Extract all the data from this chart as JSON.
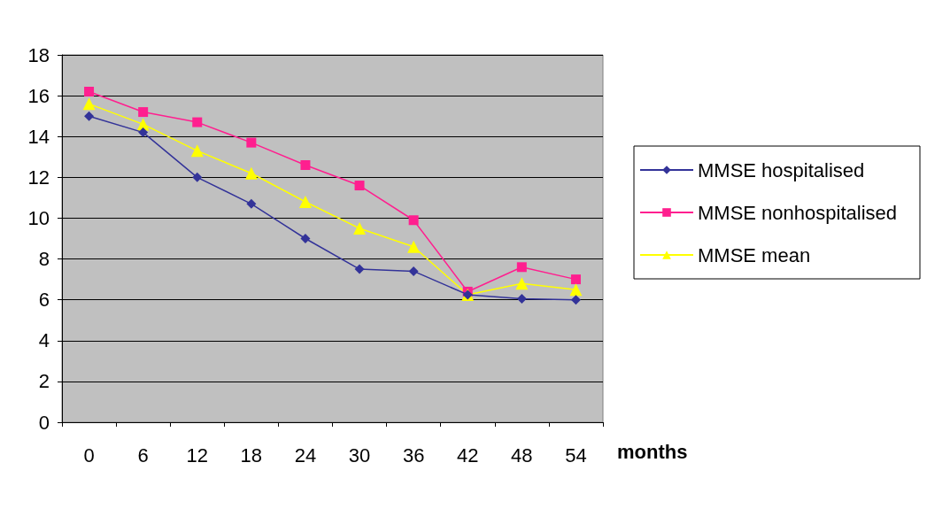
{
  "chart_data": {
    "type": "line",
    "xlabel": "months",
    "categories": [
      "0",
      "6",
      "12",
      "18",
      "24",
      "30",
      "36",
      "42",
      "48",
      "54"
    ],
    "series": [
      {
        "name": "MMSE hospitalised",
        "color": "#333399",
        "marker": "diamond",
        "values": [
          15.0,
          14.2,
          12.0,
          10.7,
          9.0,
          7.5,
          7.4,
          6.25,
          6.05,
          6.0
        ]
      },
      {
        "name": "MMSE nonhospitalised",
        "color": "#ff1f8f",
        "marker": "square",
        "values": [
          16.2,
          15.2,
          14.7,
          13.7,
          12.6,
          11.6,
          9.9,
          6.4,
          7.6,
          7.0
        ]
      },
      {
        "name": "MMSE mean",
        "color": "#ffff00",
        "marker": "triangle",
        "values": [
          15.6,
          14.6,
          13.3,
          12.2,
          10.8,
          9.5,
          8.6,
          6.25,
          6.8,
          6.5
        ]
      }
    ],
    "ylim": [
      0,
      18
    ],
    "yticks": [
      0,
      2,
      4,
      6,
      8,
      10,
      12,
      14,
      16,
      18
    ],
    "grid": "y",
    "legend": "right",
    "line_style": "solid"
  }
}
